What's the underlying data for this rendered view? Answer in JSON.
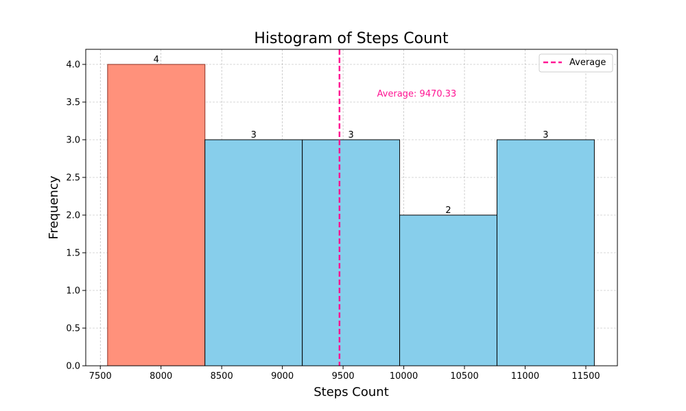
{
  "chart_data": {
    "type": "bar",
    "title": "Histogram of Steps Count",
    "xlabel": "Steps Count",
    "ylabel": "Frequency",
    "xlim": [
      7380,
      11760
    ],
    "ylim": [
      0,
      4.2
    ],
    "xticks": [
      7500,
      8000,
      8500,
      9000,
      9500,
      10000,
      10500,
      11000,
      11500
    ],
    "yticks": [
      0.0,
      0.5,
      1.0,
      1.5,
      2.0,
      2.5,
      3.0,
      3.5,
      4.0
    ],
    "xtick_labels": [
      "7500",
      "8000",
      "8500",
      "9000",
      "9500",
      "10000",
      "10500",
      "11000",
      "11500"
    ],
    "ytick_labels": [
      "0.0",
      "0.5",
      "1.0",
      "1.5",
      "2.0",
      "2.5",
      "3.0",
      "3.5",
      "4.0"
    ],
    "grid": true,
    "bins": [
      {
        "start": 7560,
        "end": 8362,
        "count": 4,
        "label": "4",
        "color": "#ff917b",
        "edge": "#8b2e22"
      },
      {
        "start": 8362,
        "end": 9164,
        "count": 3,
        "label": "3",
        "color": "#87ceeb",
        "edge": "#000000"
      },
      {
        "start": 9164,
        "end": 9966,
        "count": 3,
        "label": "3",
        "color": "#87ceeb",
        "edge": "#000000"
      },
      {
        "start": 9966,
        "end": 10768,
        "count": 2,
        "label": "2",
        "color": "#87ceeb",
        "edge": "#000000"
      },
      {
        "start": 10768,
        "end": 11570,
        "count": 3,
        "label": "3",
        "color": "#87ceeb",
        "edge": "#000000"
      }
    ],
    "average": {
      "value": 9470.33,
      "label": "Average: 9470.33",
      "color": "#ff1493",
      "annotation_x": 9780,
      "annotation_y": 3.62
    },
    "legend": {
      "placement": "top-right",
      "entries": [
        {
          "name": "Average",
          "color": "#ff1493",
          "style": "dashed"
        }
      ]
    }
  }
}
